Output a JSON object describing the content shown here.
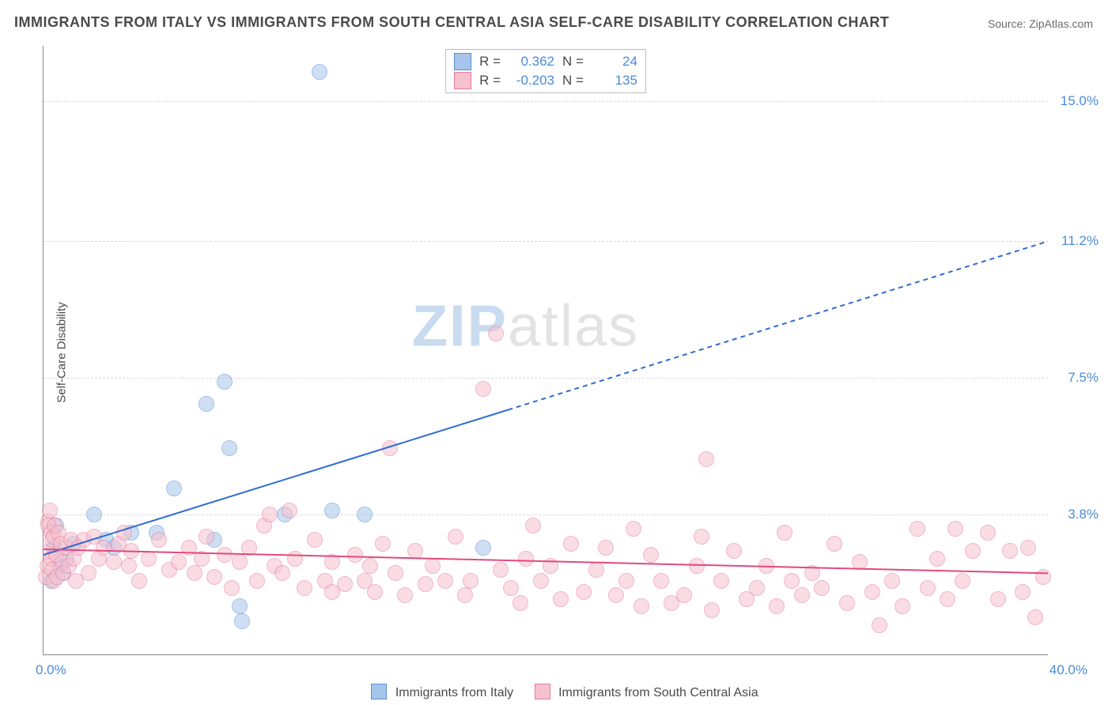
{
  "title": "IMMIGRANTS FROM ITALY VS IMMIGRANTS FROM SOUTH CENTRAL ASIA SELF-CARE DISABILITY CORRELATION CHART",
  "source_label": "Source: ",
  "source_name": "ZipAtlas.com",
  "ylabel": "Self-Care Disability",
  "watermark_zip": "ZIP",
  "watermark_atlas": "atlas",
  "chart": {
    "type": "scatter",
    "xlim": [
      0,
      40
    ],
    "ylim": [
      0,
      16.5
    ],
    "x_tick_min_label": "0.0%",
    "x_tick_max_label": "40.0%",
    "y_gridlines": [
      3.8,
      7.5,
      11.2,
      15.0
    ],
    "y_tick_labels": [
      "3.8%",
      "7.5%",
      "11.2%",
      "15.0%"
    ],
    "background_color": "#ffffff",
    "grid_color": "#d8d8d8",
    "axis_color": "#888888",
    "tick_label_color": "#4b8bd6",
    "marker_radius": 9,
    "marker_opacity": 0.55,
    "marker_stroke_width": 1
  },
  "series": [
    {
      "name": "Immigrants from Italy",
      "fill_color": "#a7c5ea",
      "stroke_color": "#5b8fd0",
      "stats": {
        "R": "0.362",
        "N": "24"
      },
      "trendline": {
        "color": "#2e6bd0",
        "width": 2,
        "solid_end_x": 18.5,
        "dashed_end_x": 40,
        "y_at_x0": 2.7,
        "y_at_x40": 11.2,
        "end_label": "11.2%"
      },
      "points": [
        [
          0.3,
          2.0
        ],
        [
          0.4,
          2.9
        ],
        [
          0.5,
          3.5
        ],
        [
          0.6,
          2.4
        ],
        [
          0.8,
          2.2
        ],
        [
          0.9,
          2.6
        ],
        [
          1.2,
          3.0
        ],
        [
          2.0,
          3.8
        ],
        [
          2.5,
          3.1
        ],
        [
          2.8,
          2.9
        ],
        [
          3.5,
          3.3
        ],
        [
          4.5,
          3.3
        ],
        [
          5.2,
          4.5
        ],
        [
          6.5,
          6.8
        ],
        [
          6.8,
          3.1
        ],
        [
          7.2,
          7.4
        ],
        [
          7.4,
          5.6
        ],
        [
          7.8,
          1.3
        ],
        [
          7.9,
          0.9
        ],
        [
          9.6,
          3.8
        ],
        [
          11.0,
          15.8
        ],
        [
          11.5,
          3.9
        ],
        [
          12.8,
          3.8
        ],
        [
          17.5,
          2.9
        ]
      ]
    },
    {
      "name": "Immigrants from South Central Asia",
      "fill_color": "#f6c1cf",
      "stroke_color": "#e67c9d",
      "stats": {
        "R": "-0.203",
        "N": "135"
      },
      "trendline": {
        "color": "#e24a7a",
        "width": 2,
        "solid_end_x": 40,
        "dashed_end_x": 40,
        "y_at_x0": 2.85,
        "y_at_x40": 2.2,
        "end_label": ""
      },
      "points": [
        [
          0.1,
          2.1
        ],
        [
          0.15,
          2.4
        ],
        [
          0.2,
          3.6
        ],
        [
          0.2,
          3.5
        ],
        [
          0.25,
          2.8
        ],
        [
          0.25,
          3.9
        ],
        [
          0.3,
          3.3
        ],
        [
          0.3,
          2.6
        ],
        [
          0.35,
          2.3
        ],
        [
          0.35,
          3.1
        ],
        [
          0.4,
          3.2
        ],
        [
          0.4,
          2.0
        ],
        [
          0.45,
          3.5
        ],
        [
          0.5,
          2.7
        ],
        [
          0.55,
          2.1
        ],
        [
          0.6,
          3.3
        ],
        [
          0.7,
          3.0
        ],
        [
          0.75,
          2.5
        ],
        [
          0.8,
          2.2
        ],
        [
          0.9,
          2.9
        ],
        [
          1.0,
          2.4
        ],
        [
          1.1,
          3.1
        ],
        [
          1.2,
          2.6
        ],
        [
          1.3,
          2.0
        ],
        [
          1.4,
          2.9
        ],
        [
          1.6,
          3.1
        ],
        [
          1.8,
          2.2
        ],
        [
          2.0,
          3.2
        ],
        [
          2.2,
          2.6
        ],
        [
          2.4,
          2.9
        ],
        [
          2.8,
          2.5
        ],
        [
          3.0,
          3.0
        ],
        [
          3.2,
          3.3
        ],
        [
          3.4,
          2.4
        ],
        [
          3.5,
          2.8
        ],
        [
          3.8,
          2.0
        ],
        [
          4.2,
          2.6
        ],
        [
          4.6,
          3.1
        ],
        [
          5.0,
          2.3
        ],
        [
          5.4,
          2.5
        ],
        [
          5.8,
          2.9
        ],
        [
          6.0,
          2.2
        ],
        [
          6.3,
          2.6
        ],
        [
          6.5,
          3.2
        ],
        [
          6.8,
          2.1
        ],
        [
          7.2,
          2.7
        ],
        [
          7.5,
          1.8
        ],
        [
          7.8,
          2.5
        ],
        [
          8.2,
          2.9
        ],
        [
          8.5,
          2.0
        ],
        [
          8.8,
          3.5
        ],
        [
          9.0,
          3.8
        ],
        [
          9.2,
          2.4
        ],
        [
          9.5,
          2.2
        ],
        [
          9.8,
          3.9
        ],
        [
          10.0,
          2.6
        ],
        [
          10.4,
          1.8
        ],
        [
          10.8,
          3.1
        ],
        [
          11.2,
          2.0
        ],
        [
          11.5,
          2.5
        ],
        [
          11.5,
          1.7
        ],
        [
          12.0,
          1.9
        ],
        [
          12.4,
          2.7
        ],
        [
          12.8,
          2.0
        ],
        [
          13.0,
          2.4
        ],
        [
          13.2,
          1.7
        ],
        [
          13.5,
          3.0
        ],
        [
          13.8,
          5.6
        ],
        [
          14.0,
          2.2
        ],
        [
          14.4,
          1.6
        ],
        [
          14.8,
          2.8
        ],
        [
          15.2,
          1.9
        ],
        [
          15.5,
          2.4
        ],
        [
          16.0,
          2.0
        ],
        [
          16.4,
          3.2
        ],
        [
          16.8,
          1.6
        ],
        [
          17.0,
          2.0
        ],
        [
          17.5,
          7.2
        ],
        [
          18.0,
          8.7
        ],
        [
          18.2,
          2.3
        ],
        [
          18.6,
          1.8
        ],
        [
          19.0,
          1.4
        ],
        [
          19.2,
          2.6
        ],
        [
          19.5,
          3.5
        ],
        [
          19.8,
          2.0
        ],
        [
          20.2,
          2.4
        ],
        [
          20.6,
          1.5
        ],
        [
          21.0,
          3.0
        ],
        [
          21.5,
          1.7
        ],
        [
          22.0,
          2.3
        ],
        [
          22.4,
          2.9
        ],
        [
          22.8,
          1.6
        ],
        [
          23.2,
          2.0
        ],
        [
          23.5,
          3.4
        ],
        [
          23.8,
          1.3
        ],
        [
          24.2,
          2.7
        ],
        [
          24.6,
          2.0
        ],
        [
          25.0,
          1.4
        ],
        [
          25.5,
          1.6
        ],
        [
          26.0,
          2.4
        ],
        [
          26.2,
          3.2
        ],
        [
          26.4,
          5.3
        ],
        [
          26.6,
          1.2
        ],
        [
          27.0,
          2.0
        ],
        [
          27.5,
          2.8
        ],
        [
          28.0,
          1.5
        ],
        [
          28.4,
          1.8
        ],
        [
          28.8,
          2.4
        ],
        [
          29.2,
          1.3
        ],
        [
          29.5,
          3.3
        ],
        [
          29.8,
          2.0
        ],
        [
          30.2,
          1.6
        ],
        [
          30.6,
          2.2
        ],
        [
          31.0,
          1.8
        ],
        [
          31.5,
          3.0
        ],
        [
          32.0,
          1.4
        ],
        [
          32.5,
          2.5
        ],
        [
          33.0,
          1.7
        ],
        [
          33.3,
          0.8
        ],
        [
          33.8,
          2.0
        ],
        [
          34.2,
          1.3
        ],
        [
          34.8,
          3.4
        ],
        [
          35.2,
          1.8
        ],
        [
          35.6,
          2.6
        ],
        [
          36.0,
          1.5
        ],
        [
          36.3,
          3.4
        ],
        [
          36.6,
          2.0
        ],
        [
          37.0,
          2.8
        ],
        [
          37.6,
          3.3
        ],
        [
          38.0,
          1.5
        ],
        [
          38.5,
          2.8
        ],
        [
          39.0,
          1.7
        ],
        [
          39.2,
          2.9
        ],
        [
          39.5,
          1.0
        ],
        [
          39.8,
          2.1
        ]
      ]
    }
  ],
  "legend": {
    "swatch_border_blue": "#5b8fd0",
    "swatch_fill_blue": "#a7c5ea",
    "swatch_border_pink": "#e67c9d",
    "swatch_fill_pink": "#f6c1cf"
  },
  "stats_legend": {
    "R_label": "R =",
    "N_label": "N ="
  }
}
